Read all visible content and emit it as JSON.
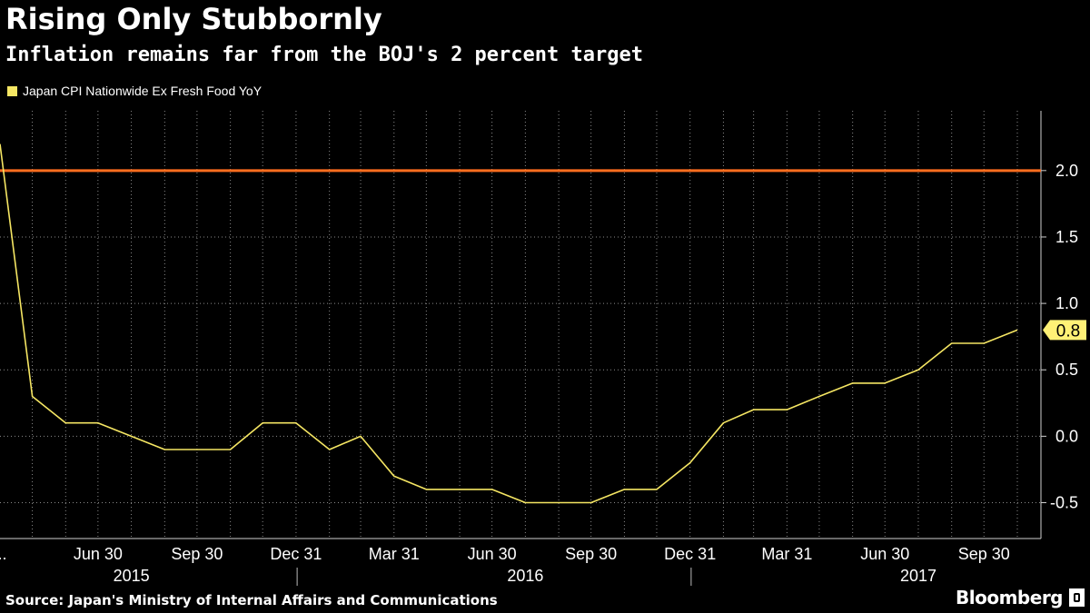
{
  "chart_data": {
    "type": "line",
    "title": "Rising Only Stubbornly",
    "subtitle": "Inflation remains far from the BOJ's 2 percent target",
    "series": [
      {
        "name": "Japan CPI Nationwide Ex Fresh Food YoY",
        "color": "#f5e663",
        "x": [
          "2015-03-31",
          "2015-04-30",
          "2015-05-31",
          "2015-06-30",
          "2015-07-31",
          "2015-08-31",
          "2015-09-30",
          "2015-10-31",
          "2015-11-30",
          "2015-12-31",
          "2016-01-31",
          "2016-02-29",
          "2016-03-31",
          "2016-04-30",
          "2016-05-31",
          "2016-06-30",
          "2016-07-31",
          "2016-08-31",
          "2016-09-30",
          "2016-10-31",
          "2016-11-30",
          "2016-12-31",
          "2017-01-31",
          "2017-02-28",
          "2017-03-31",
          "2017-04-30",
          "2017-05-31",
          "2017-06-30",
          "2017-07-31",
          "2017-08-31",
          "2017-09-30",
          "2017-10-31"
        ],
        "values": [
          2.2,
          0.3,
          0.1,
          0.1,
          0.0,
          -0.1,
          -0.1,
          -0.1,
          0.1,
          0.1,
          -0.1,
          0.0,
          -0.3,
          -0.4,
          -0.4,
          -0.4,
          -0.5,
          -0.5,
          -0.5,
          -0.4,
          -0.4,
          -0.2,
          0.1,
          0.2,
          0.2,
          0.3,
          0.4,
          0.4,
          0.5,
          0.7,
          0.7,
          0.8
        ]
      }
    ],
    "reference_line": {
      "value": 2.0,
      "color": "#ff6e1f"
    },
    "last_value_label": "0.8",
    "y_ticks": [
      {
        "value": 2.0,
        "label": "2.0"
      },
      {
        "value": 1.5,
        "label": "1.5"
      },
      {
        "value": 1.0,
        "label": "1.0"
      },
      {
        "value": 0.5,
        "label": "0.5"
      },
      {
        "value": 0.0,
        "label": "0.0"
      },
      {
        "value": -0.5,
        "label": "-0.5"
      }
    ],
    "ylim": [
      -0.77,
      2.45
    ],
    "x_ticks": [
      {
        "x": "2015-03-31",
        "label": "..."
      },
      {
        "x": "2015-06-30",
        "label": "Jun 30"
      },
      {
        "x": "2015-09-30",
        "label": "Sep 30"
      },
      {
        "x": "2015-12-31",
        "label": "Dec 31"
      },
      {
        "x": "2016-03-31",
        "label": "Mar 31"
      },
      {
        "x": "2016-06-30",
        "label": "Jun 30"
      },
      {
        "x": "2016-09-30",
        "label": "Sep 30"
      },
      {
        "x": "2016-12-31",
        "label": "Dec 31"
      },
      {
        "x": "2017-03-31",
        "label": "Mar 31"
      },
      {
        "x": "2017-06-30",
        "label": "Jun 30"
      },
      {
        "x": "2017-09-30",
        "label": "Sep 30"
      }
    ],
    "year_labels": [
      {
        "x": "2015-07-31",
        "label": "2015"
      },
      {
        "x": "2016-07-31",
        "label": "2016"
      },
      {
        "x": "2017-07-31",
        "label": "2017"
      }
    ],
    "year_dividers": [
      "2016-01-01",
      "2017-01-01"
    ],
    "grid": true,
    "legend_position": "top-left"
  },
  "source": "Source: Japan's Ministry of Internal Affairs and Communications",
  "brand": "Bloomberg"
}
